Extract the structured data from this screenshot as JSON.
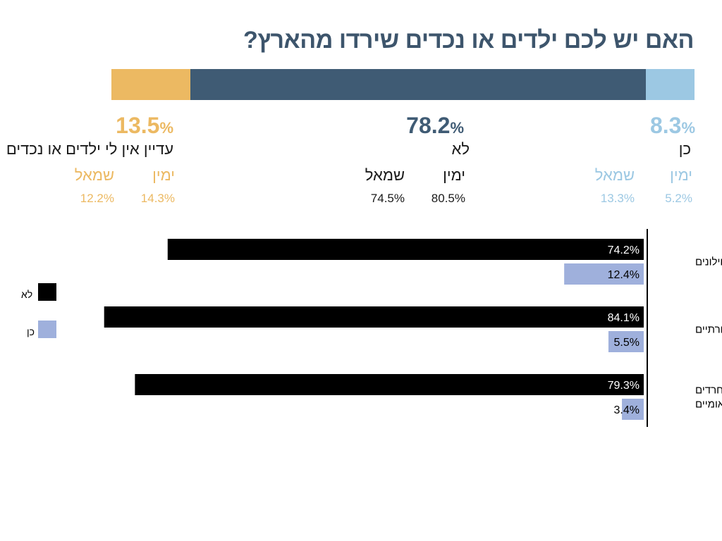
{
  "title": "האם יש לכם ילדים או נכדים שירדו מהארץ?",
  "colors": {
    "title": "#3d556c",
    "yes": "#9cc8e3",
    "no": "#3f5b74",
    "not_yet": "#ecb962",
    "bar_no": "#000000",
    "bar_yes": "#9fb0dc",
    "axis": "#000000"
  },
  "summary": {
    "yes": {
      "label": "כן",
      "pct": "8.3",
      "pct_symbol": "%",
      "value": 8.3,
      "right_label": "ימין",
      "right_value": "5.2%",
      "left_label": "שמאל",
      "left_value": "13.3%"
    },
    "no": {
      "label": "לא",
      "pct": "78.2",
      "pct_symbol": "%",
      "value": 78.2,
      "right_label": "ימין",
      "right_value": "80.5%",
      "left_label": "שמאל",
      "left_value": "74.5%"
    },
    "not_yet": {
      "label": "עדיין אין לי ילדים או נכדים",
      "pct": "13.5",
      "pct_symbol": "%",
      "value": 13.5,
      "right_label": "ימין",
      "right_value": "14.3%",
      "left_label": "שמאל",
      "left_value": "12.2%"
    }
  },
  "legend": {
    "no": "לא",
    "yes": "כן"
  },
  "chart_data": {
    "type": "bar",
    "orientation": "horizontal",
    "categories": [
      "חילונים",
      "מסורתיים",
      "חרדים ודתיים־לאומיים"
    ],
    "category_lines": [
      [
        "חילונים"
      ],
      [
        "מסורתיים"
      ],
      [
        "חרדים",
        "ודתיים־לאומיים"
      ]
    ],
    "series": [
      {
        "name": "לא",
        "values": [
          74.2,
          84.1,
          79.3
        ],
        "labels": [
          "74.2%",
          "84.1%",
          "79.3%"
        ]
      },
      {
        "name": "כן",
        "values": [
          12.4,
          5.5,
          3.4
        ],
        "labels": [
          "12.4%",
          "5.5%",
          "3.4%"
        ]
      }
    ],
    "xlim": [
      0,
      100
    ],
    "grid": false,
    "legend_position": "left"
  }
}
